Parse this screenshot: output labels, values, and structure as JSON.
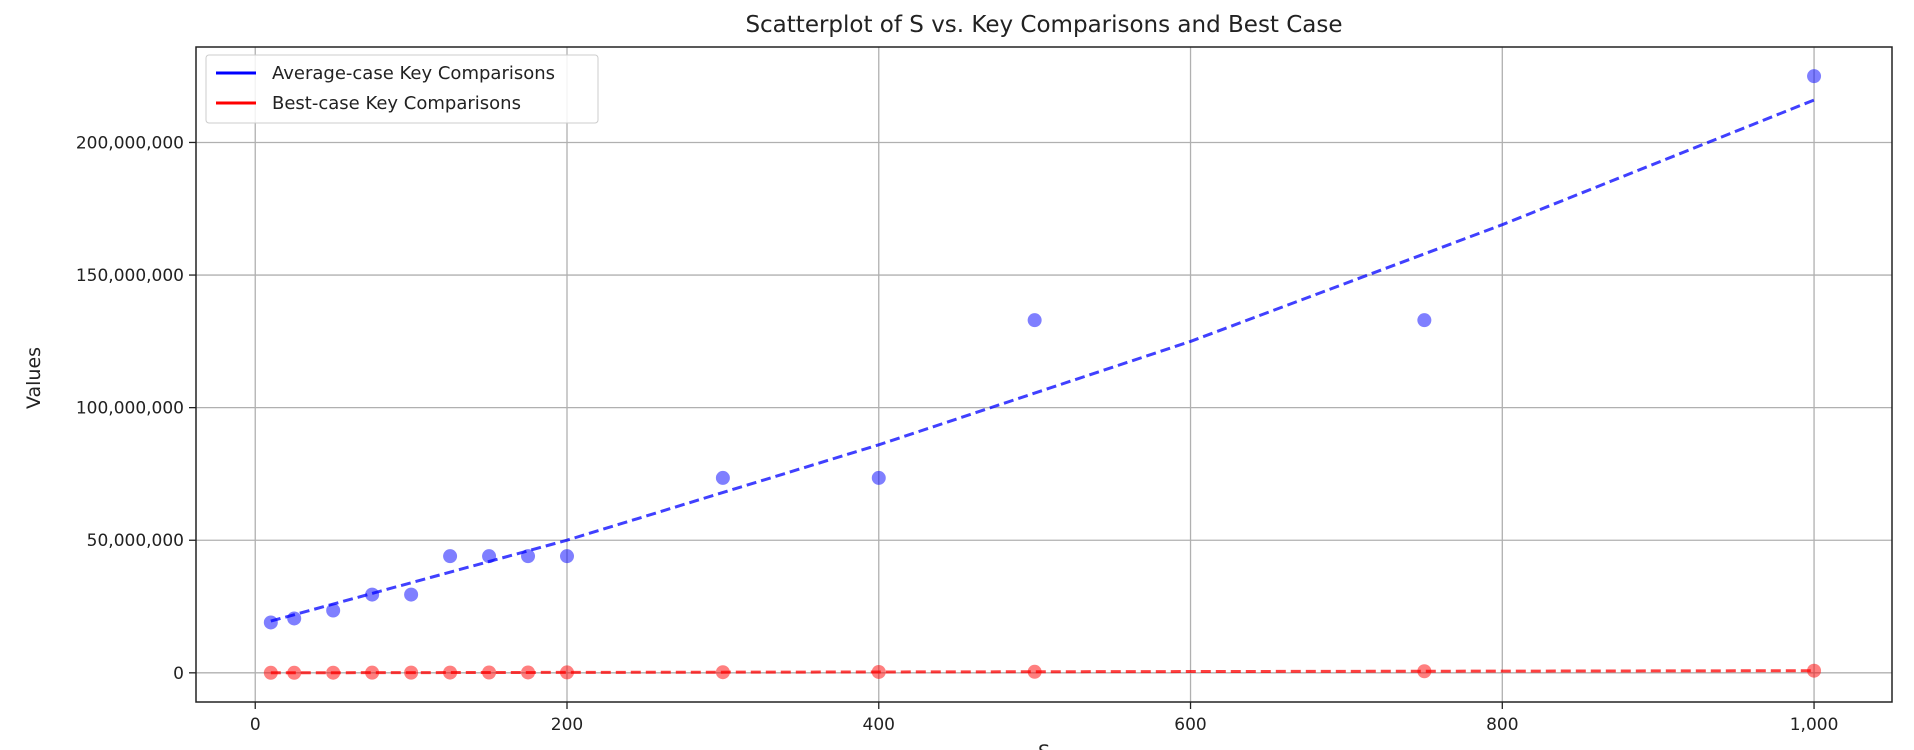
{
  "chart_data": {
    "type": "scatter",
    "title": "Scatterplot of S vs. Key Comparisons and Best Case",
    "xlabel": "S",
    "ylabel": "Values",
    "xlim": [
      -38,
      1050
    ],
    "ylim": [
      -11000000,
      236000000
    ],
    "xticks": [
      0,
      200,
      400,
      600,
      800,
      1000
    ],
    "xtick_labels": [
      "0",
      "200",
      "400",
      "600",
      "800",
      "1,000"
    ],
    "yticks": [
      0,
      50000000,
      100000000,
      150000000,
      200000000
    ],
    "ytick_labels": [
      "0",
      "50,000,000",
      "100,000,000",
      "150,000,000",
      "200,000,000"
    ],
    "grid": true,
    "legend_position": "top-left",
    "x": [
      10,
      25,
      50,
      75,
      100,
      125,
      150,
      175,
      200,
      300,
      400,
      500,
      750,
      1000
    ],
    "series": [
      {
        "name": "Average-case Key Comparisons",
        "color": "#0000ff",
        "values": [
          19000000,
          20500000,
          23500000,
          29500000,
          29500000,
          44000000,
          44000000,
          44000000,
          44000000,
          73500000,
          73500000,
          133000000,
          133000000,
          225000000
        ],
        "trend": [
          [
            10,
            19500000
          ],
          [
            200,
            50000000
          ],
          [
            400,
            86000000
          ],
          [
            600,
            125000000
          ],
          [
            800,
            169000000
          ],
          [
            1000,
            216000000
          ]
        ]
      },
      {
        "name": "Best-case Key Comparisons",
        "color": "#ff0000",
        "values": [
          10000,
          20000,
          40000,
          60000,
          80000,
          100000,
          120000,
          140000,
          160000,
          240000,
          320000,
          400000,
          600000,
          800000
        ],
        "trend": [
          [
            10,
            10000
          ],
          [
            1000,
            800000
          ]
        ]
      }
    ]
  }
}
